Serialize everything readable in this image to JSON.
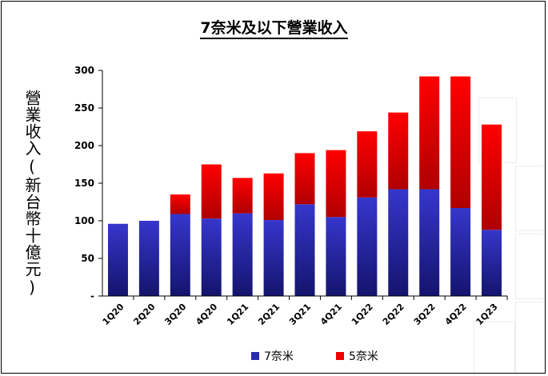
{
  "chart_data": {
    "type": "bar",
    "stacked": true,
    "title": "7奈米及以下營業收入",
    "ylabel": "營業收入(新台幣十億元)",
    "xlabel": "",
    "ylim": [
      0,
      300
    ],
    "yticks": [
      "-",
      "50",
      "100",
      "150",
      "200",
      "250",
      "300"
    ],
    "categories": [
      "1Q20",
      "2Q20",
      "3Q20",
      "4Q20",
      "1Q21",
      "2Q21",
      "3Q21",
      "4Q21",
      "1Q22",
      "2Q22",
      "3Q22",
      "4Q22",
      "1Q23"
    ],
    "series": [
      {
        "name": "7奈米",
        "color": "#2b2bb3",
        "values": [
          96,
          100,
          109,
          103,
          110,
          101,
          122,
          105,
          131,
          142,
          142,
          117,
          88
        ]
      },
      {
        "name": "5奈米",
        "color": "#ee0000",
        "values": [
          0,
          0,
          26,
          72,
          47,
          62,
          68,
          89,
          88,
          102,
          150,
          175,
          140
        ]
      }
    ],
    "grid": false,
    "legend_position": "bottom"
  }
}
